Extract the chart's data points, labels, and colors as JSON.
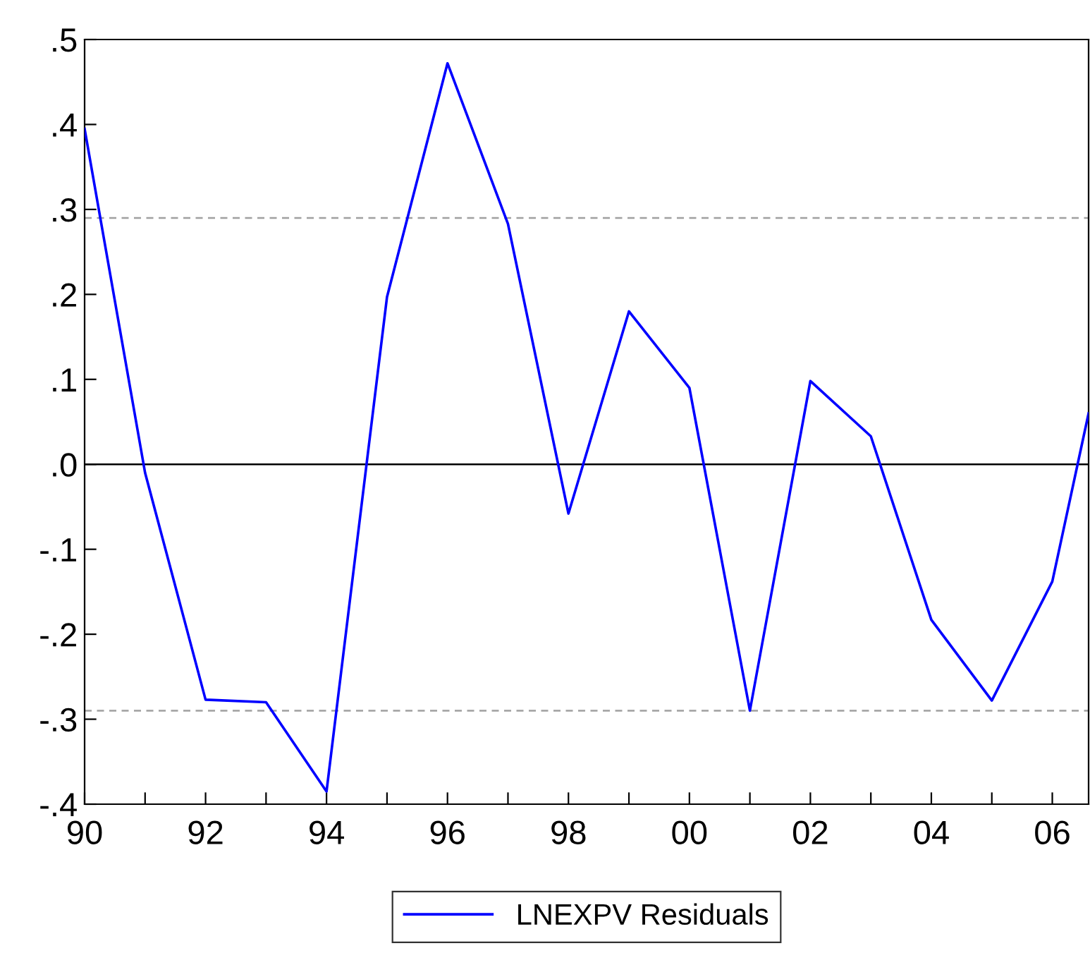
{
  "chart_data": {
    "type": "line",
    "x": [
      1990,
      1991,
      1992,
      1993,
      1994,
      1995,
      1996,
      1997,
      1998,
      1999,
      2000,
      2001,
      2002,
      2003,
      2004,
      2005,
      2006,
      2006.6
    ],
    "series": [
      {
        "name": "LNEXPV Residuals",
        "color": "#0000ff",
        "values": [
          0.395,
          -0.01,
          -0.277,
          -0.28,
          -0.385,
          0.197,
          0.472,
          0.283,
          -0.058,
          0.18,
          0.09,
          -0.29,
          0.098,
          0.033,
          -0.183,
          -0.278,
          -0.138,
          0.06
        ]
      }
    ],
    "xlim": [
      1990,
      2006.6
    ],
    "ylim": [
      -0.4,
      0.5
    ],
    "xticks": [
      {
        "value": 1990,
        "label": "90"
      },
      {
        "value": 1991,
        "label": null
      },
      {
        "value": 1992,
        "label": "92"
      },
      {
        "value": 1993,
        "label": null
      },
      {
        "value": 1994,
        "label": "94"
      },
      {
        "value": 1995,
        "label": null
      },
      {
        "value": 1996,
        "label": "96"
      },
      {
        "value": 1997,
        "label": null
      },
      {
        "value": 1998,
        "label": "98"
      },
      {
        "value": 1999,
        "label": null
      },
      {
        "value": 2000,
        "label": "00"
      },
      {
        "value": 2001,
        "label": null
      },
      {
        "value": 2002,
        "label": "02"
      },
      {
        "value": 2003,
        "label": null
      },
      {
        "value": 2004,
        "label": "04"
      },
      {
        "value": 2005,
        "label": null
      },
      {
        "value": 2006,
        "label": "06"
      }
    ],
    "yticks": [
      {
        "value": -0.4,
        "label": "-.4"
      },
      {
        "value": -0.3,
        "label": "-.3"
      },
      {
        "value": -0.2,
        "label": "-.2"
      },
      {
        "value": -0.1,
        "label": "-.1"
      },
      {
        "value": 0.0,
        "label": ".0"
      },
      {
        "value": 0.1,
        "label": ".1"
      },
      {
        "value": 0.2,
        "label": ".2"
      },
      {
        "value": 0.3,
        "label": ".3"
      },
      {
        "value": 0.4,
        "label": ".4"
      },
      {
        "value": 0.5,
        "label": ".5"
      }
    ],
    "ref_lines": [
      {
        "axis": "y",
        "value": 0.29,
        "color": "#a0a0a0",
        "line_style": "dashed"
      },
      {
        "axis": "y",
        "value": 0,
        "color": "#000000",
        "line_style": "solid"
      },
      {
        "axis": "y",
        "value": -0.29,
        "color": "#a0a0a0",
        "line_style": "dashed"
      }
    ],
    "grid": false,
    "legend": "bottom",
    "marker": "none",
    "line_style": "solid"
  }
}
